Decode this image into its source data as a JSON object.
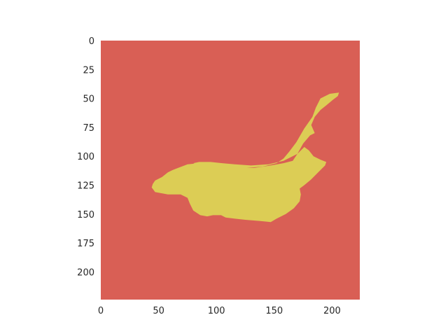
{
  "chart_data": {
    "type": "heatmap",
    "title": "",
    "xlabel": "",
    "ylabel": "",
    "xlim": [
      0,
      224
    ],
    "ylim": [
      224,
      0
    ],
    "grid": false,
    "x_ticks": [
      "0",
      "50",
      "100",
      "150",
      "200"
    ],
    "y_ticks": [
      "0",
      "25",
      "50",
      "75",
      "100",
      "125",
      "150",
      "175",
      "200"
    ],
    "colors": {
      "background": "#d95f55",
      "foreground": "#dccd55"
    },
    "mask_outline": [
      [
        45,
        124
      ],
      [
        47,
        121
      ],
      [
        53,
        118
      ],
      [
        58,
        114
      ],
      [
        62,
        112
      ],
      [
        67,
        110
      ],
      [
        75,
        107
      ],
      [
        85,
        106
      ],
      [
        96,
        107
      ],
      [
        108,
        108
      ],
      [
        120,
        110
      ],
      [
        133,
        110
      ],
      [
        147,
        108
      ],
      [
        158,
        106
      ],
      [
        166,
        104
      ],
      [
        170,
        98
      ],
      [
        175,
        89
      ],
      [
        181,
        82
      ],
      [
        185,
        80
      ],
      [
        182,
        73
      ],
      [
        185,
        66
      ],
      [
        190,
        60
      ],
      [
        195,
        56
      ],
      [
        201,
        51
      ],
      [
        205,
        48
      ],
      [
        206,
        45
      ],
      [
        198,
        46
      ],
      [
        190,
        50
      ],
      [
        186,
        58
      ],
      [
        183,
        66
      ],
      [
        176,
        76
      ],
      [
        169,
        88
      ],
      [
        163,
        96
      ],
      [
        158,
        102
      ],
      [
        152,
        106
      ],
      [
        140,
        109
      ],
      [
        126,
        110
      ],
      [
        110,
        110
      ],
      [
        98,
        110
      ],
      [
        85,
        108
      ],
      [
        80,
        106
      ],
      [
        85,
        105
      ],
      [
        95,
        105
      ],
      [
        105,
        106
      ],
      [
        116,
        107
      ],
      [
        130,
        108
      ],
      [
        145,
        107
      ],
      [
        158,
        104
      ],
      [
        170,
        98
      ],
      [
        176,
        92
      ],
      [
        180,
        95
      ],
      [
        184,
        100
      ],
      [
        190,
        103
      ],
      [
        195,
        105
      ],
      [
        194,
        108
      ],
      [
        188,
        114
      ],
      [
        182,
        120
      ],
      [
        176,
        125
      ],
      [
        172,
        128
      ],
      [
        173,
        133
      ],
      [
        172,
        139
      ],
      [
        167,
        145
      ],
      [
        160,
        150
      ],
      [
        152,
        154
      ],
      [
        147,
        157
      ],
      [
        138,
        156
      ],
      [
        125,
        155
      ],
      [
        116,
        154
      ],
      [
        108,
        153
      ],
      [
        104,
        151
      ],
      [
        97,
        151
      ],
      [
        92,
        152
      ],
      [
        86,
        151
      ],
      [
        80,
        147
      ],
      [
        77,
        141
      ],
      [
        75,
        136
      ],
      [
        69,
        133
      ],
      [
        58,
        133
      ],
      [
        47,
        131
      ],
      [
        44,
        127
      ]
    ]
  }
}
